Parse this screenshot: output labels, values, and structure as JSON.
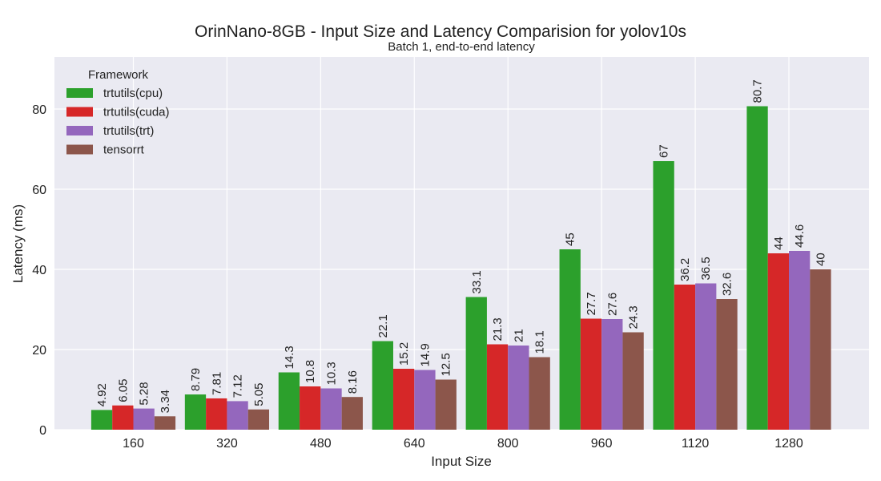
{
  "chart_data": {
    "type": "bar",
    "title": "OrinNano-8GB - Input Size and Latency Comparision for yolov10s",
    "subtitle": "Batch 1, end-to-end latency",
    "xlabel": "Input Size",
    "ylabel": "Latency (ms)",
    "categories": [
      "160",
      "320",
      "480",
      "640",
      "800",
      "960",
      "1120",
      "1280"
    ],
    "ylim": [
      0,
      93
    ],
    "yticks": [
      0,
      20,
      40,
      60,
      80
    ],
    "grid": true,
    "legend_title": "Framework",
    "legend_position": "top-left",
    "series": [
      {
        "name": "trtutils(cpu)",
        "color": "#2ca02c",
        "values": [
          4.92,
          8.79,
          14.3,
          22.1,
          33.1,
          45,
          67,
          80.7
        ],
        "labels": [
          "4.92",
          "8.79",
          "14.3",
          "22.1",
          "33.1",
          "45",
          "67",
          "80.7"
        ]
      },
      {
        "name": "trtutils(cuda)",
        "color": "#d62728",
        "values": [
          6.05,
          7.81,
          10.8,
          15.2,
          21.3,
          27.7,
          36.2,
          44
        ],
        "labels": [
          "6.05",
          "7.81",
          "10.8",
          "15.2",
          "21.3",
          "27.7",
          "36.2",
          "44"
        ]
      },
      {
        "name": "trtutils(trt)",
        "color": "#9467bd",
        "values": [
          5.28,
          7.12,
          10.3,
          14.9,
          21,
          27.6,
          36.5,
          44.6
        ],
        "labels": [
          "5.28",
          "7.12",
          "10.3",
          "14.9",
          "21",
          "27.6",
          "36.5",
          "44.6"
        ]
      },
      {
        "name": "tensorrt",
        "color": "#8c564b",
        "values": [
          3.34,
          5.05,
          8.16,
          12.5,
          18.1,
          24.3,
          32.6,
          40
        ],
        "labels": [
          "3.34",
          "5.05",
          "8.16",
          "12.5",
          "18.1",
          "24.3",
          "32.6",
          "40"
        ]
      }
    ],
    "plot_background": "#eaeaf2",
    "grid_color": "#ffffff"
  }
}
